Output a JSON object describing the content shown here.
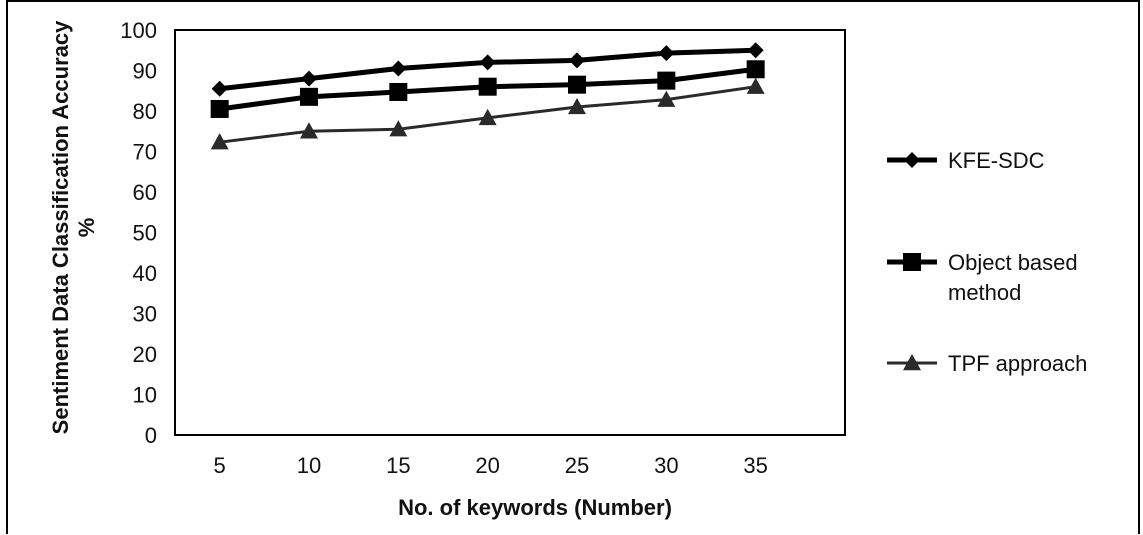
{
  "chart_data": {
    "type": "line",
    "categories": [
      5,
      10,
      15,
      20,
      25,
      30,
      35
    ],
    "xlabel": "No. of keywords (Number)",
    "ylabel": "Sentiment Data Classification Accuracy %",
    "ylim": [
      0,
      100
    ],
    "yticks": [
      0,
      10,
      20,
      30,
      40,
      50,
      60,
      70,
      80,
      90,
      100
    ],
    "grid": false,
    "legend_position": "right",
    "series": [
      {
        "name": "KFE-SDC",
        "marker": "diamond",
        "color": "#000000",
        "values": [
          85.5,
          88,
          90.5,
          92,
          92.5,
          94.3,
          95
        ]
      },
      {
        "name": "Object based method",
        "marker": "square",
        "color": "#000000",
        "values": [
          80.5,
          83.5,
          84.7,
          86,
          86.5,
          87.5,
          90.3
        ]
      },
      {
        "name": "TPF approach",
        "marker": "triangle",
        "color": "#2a2a2a",
        "values": [
          72.3,
          75,
          75.5,
          78.3,
          81,
          82.8,
          86
        ]
      }
    ]
  }
}
